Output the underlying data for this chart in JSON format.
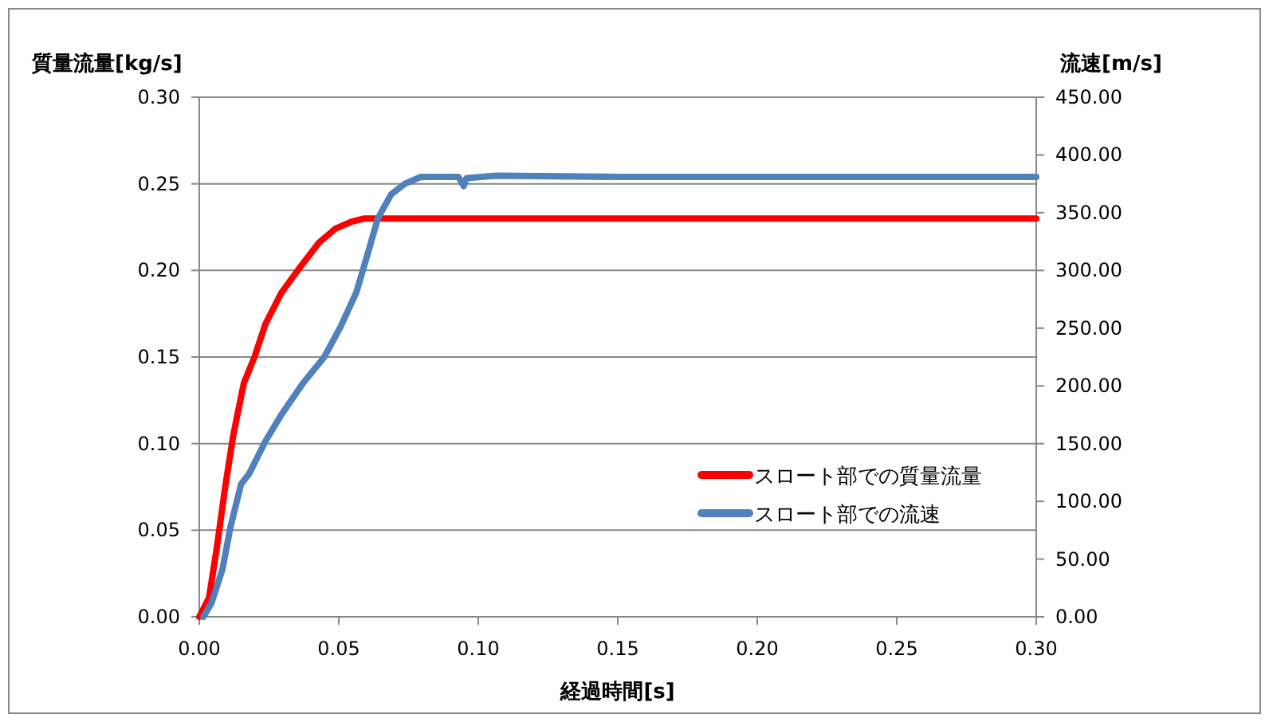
{
  "chart_data": {
    "type": "line",
    "xlabel": "経過時間[s]",
    "ylabel": "質量流量[kg/s]",
    "y2label": "流速[m/s]",
    "xlim": [
      0,
      0.3
    ],
    "ylim": [
      0,
      0.3
    ],
    "y2lim": [
      0,
      450
    ],
    "xticks": [
      {
        "value": 0,
        "label": "0.00"
      },
      {
        "value": 0.05,
        "label": "0.05"
      },
      {
        "value": 0.1,
        "label": "0.10"
      },
      {
        "value": 0.15,
        "label": "0.15"
      },
      {
        "value": 0.2,
        "label": "0.20"
      },
      {
        "value": 0.25,
        "label": "0.25"
      },
      {
        "value": 0.3,
        "label": "0.30"
      }
    ],
    "yticks": [
      {
        "value": 0,
        "label": "0.00"
      },
      {
        "value": 0.05,
        "label": "0.05"
      },
      {
        "value": 0.1,
        "label": "0.10"
      },
      {
        "value": 0.15,
        "label": "0.15"
      },
      {
        "value": 0.2,
        "label": "0.20"
      },
      {
        "value": 0.25,
        "label": "0.25"
      },
      {
        "value": 0.3,
        "label": "0.30"
      }
    ],
    "y2ticks": [
      {
        "value": 0,
        "label": "0.00"
      },
      {
        "value": 50,
        "label": "50.00"
      },
      {
        "value": 100,
        "label": "100.00"
      },
      {
        "value": 150,
        "label": "150.00"
      },
      {
        "value": 200,
        "label": "200.00"
      },
      {
        "value": 250,
        "label": "250.00"
      },
      {
        "value": 300,
        "label": "300.00"
      },
      {
        "value": 350,
        "label": "350.00"
      },
      {
        "value": 400,
        "label": "400.00"
      },
      {
        "value": 450,
        "label": "450.00"
      }
    ],
    "grid": "y",
    "legend": "right",
    "marker": "none",
    "line_style": "solid",
    "series": [
      {
        "name": "スロート部での質量流量",
        "color": "#ff0000",
        "x": [
          0,
          0.0035,
          0.0063,
          0.0092,
          0.0121,
          0.0137,
          0.016,
          0.0198,
          0.0237,
          0.0294,
          0.0362,
          0.0429,
          0.0487,
          0.0544,
          0.0592,
          0.1,
          0.2,
          0.3
        ],
        "values": [
          0,
          0.011,
          0.04,
          0.074,
          0.104,
          0.117,
          0.135,
          0.15,
          0.169,
          0.187,
          0.202,
          0.216,
          0.224,
          0.228,
          0.23,
          0.23,
          0.23,
          0.23
        ]
      },
      {
        "name": "スロート部での流速",
        "color": "#4f81bd",
        "axis": "y2",
        "x": [
          0.0015,
          0.0044,
          0.0083,
          0.0112,
          0.015,
          0.0179,
          0.0237,
          0.0294,
          0.0371,
          0.0448,
          0.0506,
          0.0563,
          0.0602,
          0.064,
          0.0688,
          0.0737,
          0.0794,
          0.0929,
          0.0948,
          0.0958,
          0.1063,
          0.15,
          0.2,
          0.25,
          0.3
        ],
        "values": [
          0,
          12,
          41,
          78,
          115,
          124,
          152,
          175,
          202,
          225,
          251,
          281,
          313,
          345,
          366,
          375,
          381,
          381,
          373,
          380,
          382,
          381,
          381,
          381,
          381
        ]
      }
    ]
  }
}
